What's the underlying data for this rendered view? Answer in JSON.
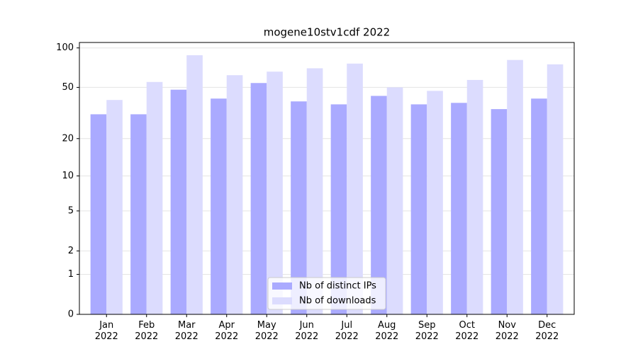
{
  "chart_data": {
    "type": "bar",
    "title": "mogene10stv1cdf 2022",
    "categories": [
      "Jan\n2022",
      "Feb\n2022",
      "Mar\n2022",
      "Apr\n2022",
      "May\n2022",
      "Jun\n2022",
      "Jul\n2022",
      "Aug\n2022",
      "Sep\n2022",
      "Oct\n2022",
      "Nov\n2022",
      "Dec\n2022"
    ],
    "series": [
      {
        "name": "Nb of distinct IPs",
        "color": "#aaaaff",
        "values": [
          31,
          31,
          48,
          41,
          54,
          39,
          37,
          43,
          37,
          38,
          34,
          41
        ]
      },
      {
        "name": "Nb of downloads",
        "color": "#dcdcfe",
        "values": [
          40,
          55,
          88,
          62,
          66,
          70,
          76,
          50,
          47,
          57,
          81,
          75
        ]
      }
    ],
    "yscale": "log1p",
    "ylim": [
      0,
      110
    ],
    "yticks": [
      0,
      1,
      2,
      5,
      10,
      20,
      50,
      100
    ],
    "grid": true,
    "legend": "lower center"
  }
}
